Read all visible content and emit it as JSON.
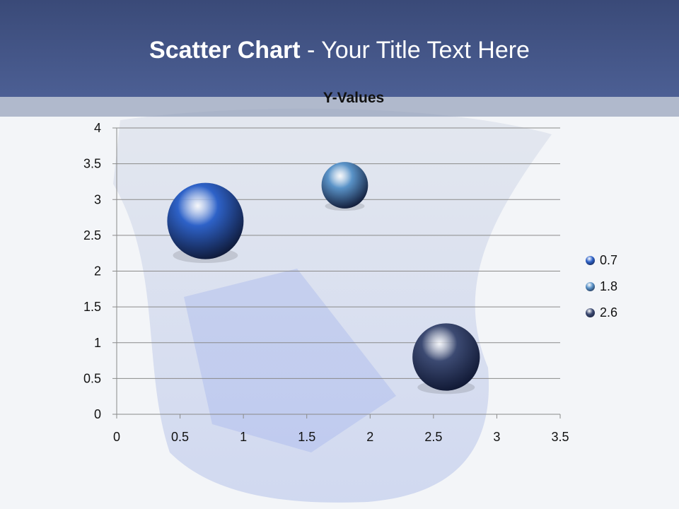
{
  "slide": {
    "title_bold": "Scatter Chart",
    "title_rest": " - Your Title Text Here"
  },
  "chart_data": {
    "type": "bubble",
    "title": "Y-Values",
    "xlim": [
      0,
      3.5
    ],
    "ylim": [
      0,
      4
    ],
    "xticks": [
      "0",
      "0.5",
      "1",
      "1.5",
      "2",
      "2.5",
      "3",
      "3.5"
    ],
    "yticks": [
      "0",
      "0.5",
      "1",
      "1.5",
      "2",
      "2.5",
      "3",
      "3.5",
      "4"
    ],
    "grid": "horizontal",
    "legend_position": "right",
    "points": [
      {
        "label": "0.7",
        "x": 0.7,
        "y": 2.7,
        "size": 2.7,
        "color": "#2e62c8"
      },
      {
        "label": "1.8",
        "x": 1.8,
        "y": 3.2,
        "size": 1.0,
        "color": "#5a93c8"
      },
      {
        "label": "2.6",
        "x": 2.6,
        "y": 0.8,
        "size": 2.1,
        "color": "#3c4a72"
      }
    ]
  }
}
